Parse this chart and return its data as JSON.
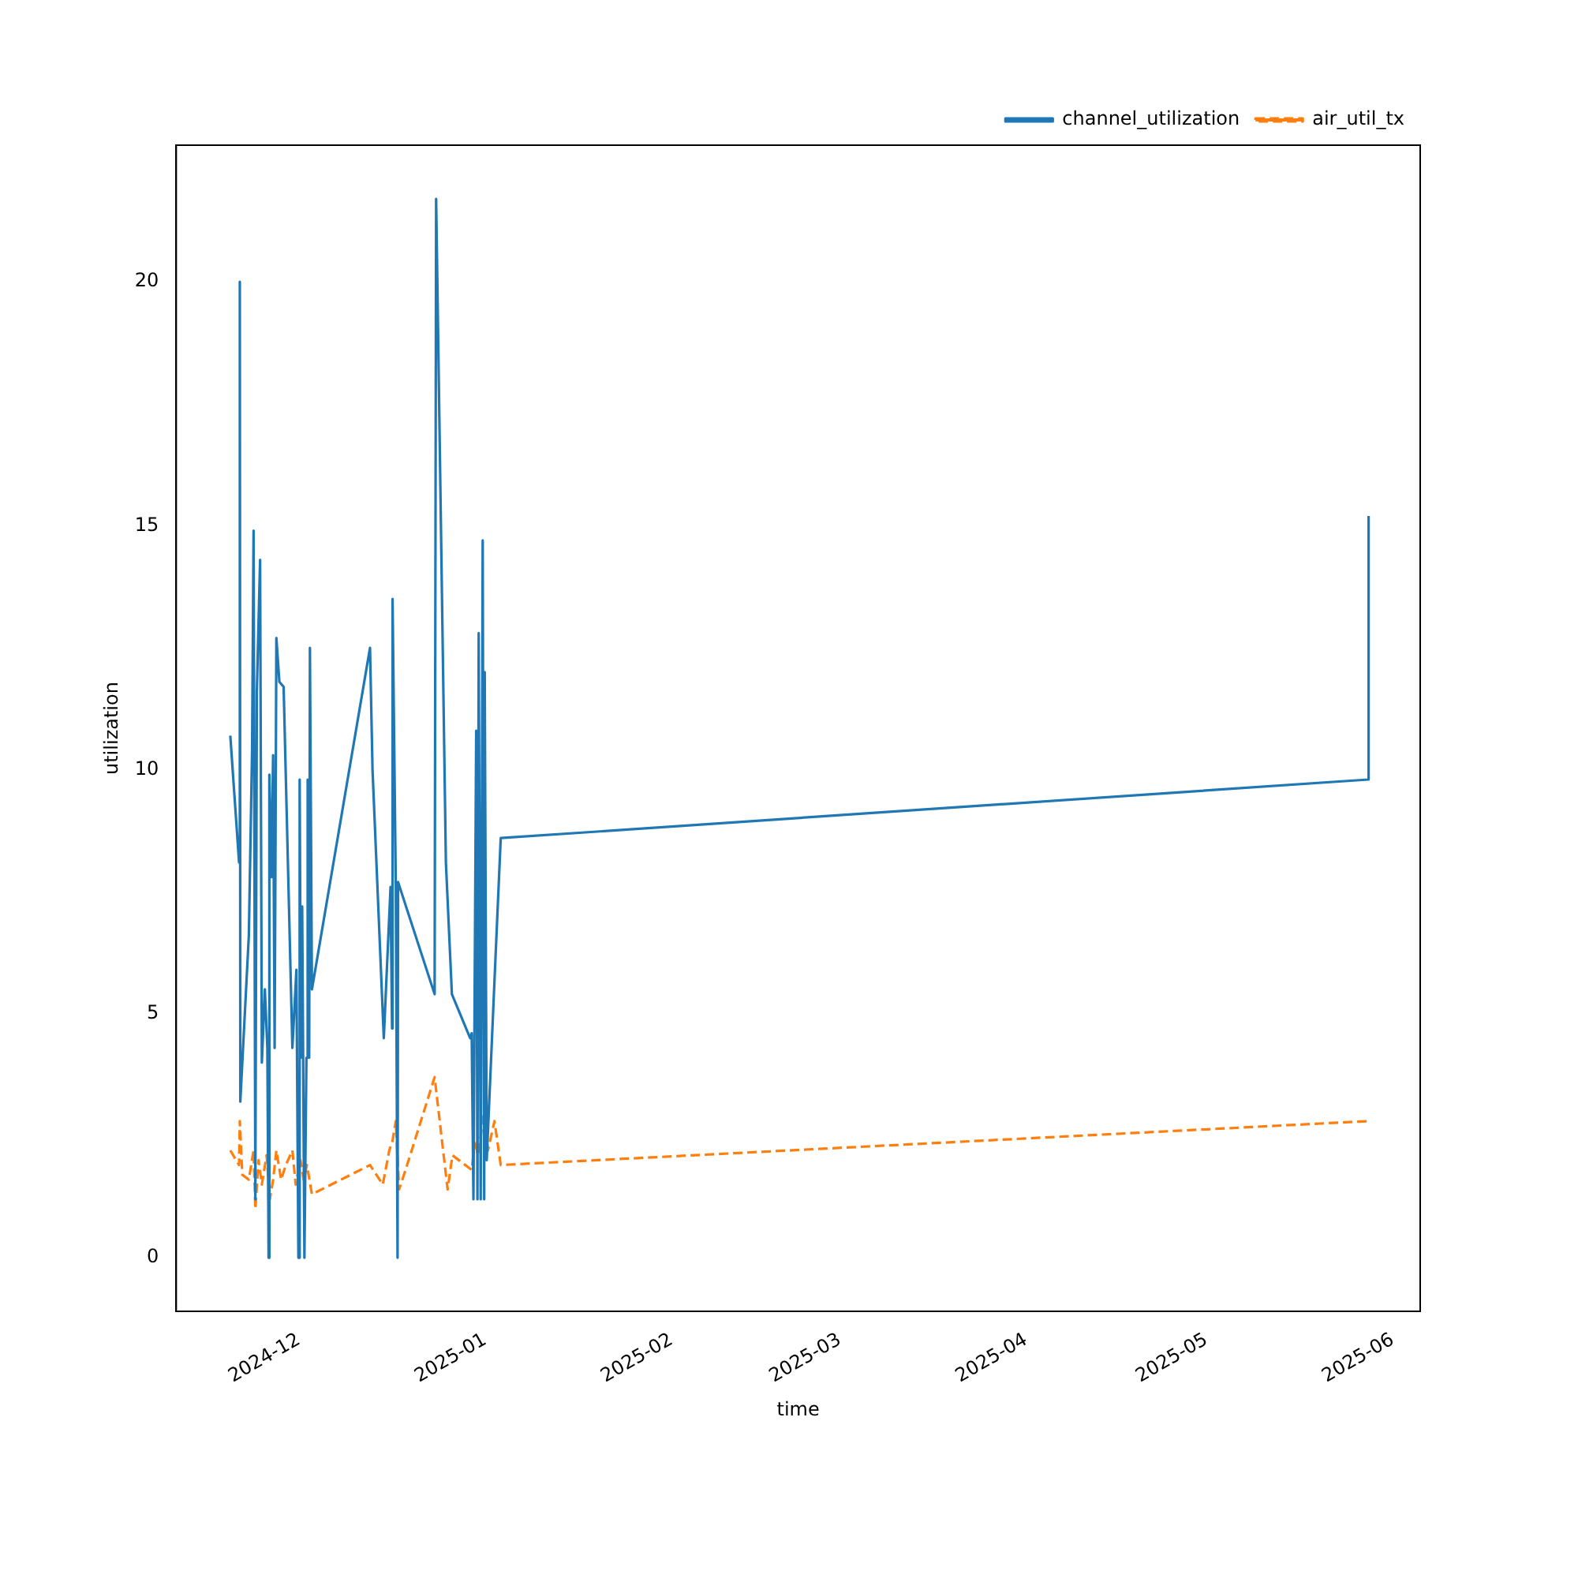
{
  "chart_data": {
    "type": "line",
    "xlabel": "time",
    "ylabel": "utilization",
    "xlim": [
      "2024-11-10T14:00",
      "2025-06-05T14:00"
    ],
    "ylim": [
      -1.1,
      22.8
    ],
    "xticks": [
      {
        "value": "2024-12-01",
        "label": "2024-12"
      },
      {
        "value": "2025-01-01",
        "label": "2025-01"
      },
      {
        "value": "2025-02-01",
        "label": "2025-02"
      },
      {
        "value": "2025-03-01",
        "label": "2025-03"
      },
      {
        "value": "2025-04-01",
        "label": "2025-04"
      },
      {
        "value": "2025-05-01",
        "label": "2025-05"
      },
      {
        "value": "2025-06-01",
        "label": "2025-06"
      }
    ],
    "yticks": [
      0,
      5,
      10,
      15,
      20
    ],
    "grid": false,
    "legend": "top right",
    "marker": "none",
    "series": [
      {
        "name": "channel_utilization",
        "color": "#1f77b4",
        "line_style": "solid",
        "x": [
          "2024-11-19T14:00",
          "2024-11-21T01:00",
          "2024-11-21T04:00",
          "2024-11-21T06:00",
          "2024-11-22T16:00",
          "2024-11-23T05:00",
          "2024-11-23T11:00",
          "2024-11-23T18:00",
          "2024-11-24T00:00",
          "2024-11-24T13:00",
          "2024-11-24T20:00",
          "2024-11-25T08:00",
          "2024-11-25T18:00",
          "2024-11-25T23:00",
          "2024-11-26T02:00",
          "2024-11-26T10:00",
          "2024-11-26T17:00",
          "2024-11-26T23:00",
          "2024-11-27T06:00",
          "2024-11-27T18:00",
          "2024-11-28T11:00",
          "2024-11-29T22:00",
          "2024-11-30T14:00",
          "2024-11-30T22:00",
          "2024-12-01T03:00",
          "2024-12-01T08:00",
          "2024-12-01T13:00",
          "2024-12-01T22:00",
          "2024-12-02T06:00",
          "2024-12-02T11:00",
          "2024-12-02T17:00",
          "2024-12-02T20:00",
          "2024-12-03T04:00",
          "2024-12-12T20:00",
          "2024-12-13T06:00",
          "2024-12-15T03:00",
          "2024-12-16T06:00",
          "2024-12-16T12:00",
          "2024-12-16T14:00",
          "2024-12-17T03:00",
          "2024-12-17T10:00",
          "2024-12-17T12:00",
          "2024-12-23T14:00",
          "2024-12-23T20:00",
          "2024-12-25T11:00",
          "2024-12-26T11:00",
          "2024-12-29T12:00",
          "2024-12-29T18:00",
          "2024-12-30T01:00",
          "2024-12-30T12:00",
          "2024-12-30T17:00",
          "2024-12-30T22:00",
          "2024-12-31T06:00",
          "2024-12-31T14:00",
          "2024-12-31T20:00",
          "2024-12-31T22:00",
          "2025-01-01T06:00",
          "2025-01-02T09:00",
          "2025-01-03T14:00",
          "2025-05-27T23:00",
          "2025-05-28T00:00"
        ],
        "values": [
          10.7,
          8.1,
          20.0,
          3.2,
          6.6,
          10.4,
          14.9,
          1.2,
          11.6,
          14.3,
          4.0,
          5.5,
          4.3,
          0,
          9.9,
          7.8,
          10.3,
          4.3,
          12.7,
          11.8,
          11.7,
          4.3,
          5.9,
          0,
          9.8,
          4.1,
          7.2,
          0,
          4.1,
          9.8,
          4.1,
          12.5,
          5.5,
          12.5,
          10.0,
          4.5,
          7.6,
          4.7,
          13.5,
          7.6,
          0,
          7.7,
          5.4,
          21.7,
          8.1,
          5.4,
          4.5,
          4.6,
          1.2,
          10.8,
          1.2,
          12.8,
          1.2,
          14.7,
          1.2,
          12.0,
          2.0,
          5.2,
          8.6,
          9.8,
          15.2
        ]
      },
      {
        "name": "air_util_tx",
        "color": "#ff7f0e",
        "line_style": "dashed",
        "x": [
          "2024-11-19T14:00",
          "2024-11-21T01:00",
          "2024-11-21T04:00",
          "2024-11-21T14:00",
          "2024-11-22T16:00",
          "2024-11-23T11:00",
          "2024-11-23T18:00",
          "2024-11-24T07:00",
          "2024-11-24T20:00",
          "2024-11-25T15:00",
          "2024-11-26T04:00",
          "2024-11-26T17:00",
          "2024-11-27T06:00",
          "2024-11-28T01:00",
          "2024-11-28T20:00",
          "2024-11-29T22:00",
          "2024-11-30T11:00",
          "2024-12-01T06:00",
          "2024-12-01T19:00",
          "2024-12-02T08:00",
          "2024-12-03T04:00",
          "2024-12-12T20:00",
          "2024-12-14T23:00",
          "2024-12-16T01:00",
          "2024-12-16T14:00",
          "2024-12-17T03:00",
          "2024-12-17T16:00",
          "2024-12-18T18:00",
          "2024-12-23T14:00",
          "2024-12-25T18:00",
          "2024-12-26T13:00",
          "2024-12-29T18:00",
          "2024-12-30T07:00",
          "2024-12-30T20:00",
          "2024-12-31T09:00",
          "2024-12-31T22:00",
          "2025-01-01T11:00",
          "2025-01-02T13:00",
          "2025-01-03T14:00",
          "2025-05-27T23:00"
        ],
        "values": [
          2.2,
          1.9,
          2.8,
          1.7,
          1.6,
          2.2,
          1.0,
          2.0,
          1.5,
          2.1,
          1.2,
          1.6,
          2.2,
          1.6,
          1.9,
          2.2,
          1.5,
          2.0,
          1.6,
          1.9,
          1.3,
          1.9,
          1.5,
          2.2,
          2.4,
          2.8,
          1.4,
          1.8,
          3.7,
          1.4,
          2.1,
          1.8,
          2.4,
          2.1,
          2.6,
          3.1,
          2.2,
          2.8,
          1.9,
          2.8
        ]
      }
    ]
  }
}
